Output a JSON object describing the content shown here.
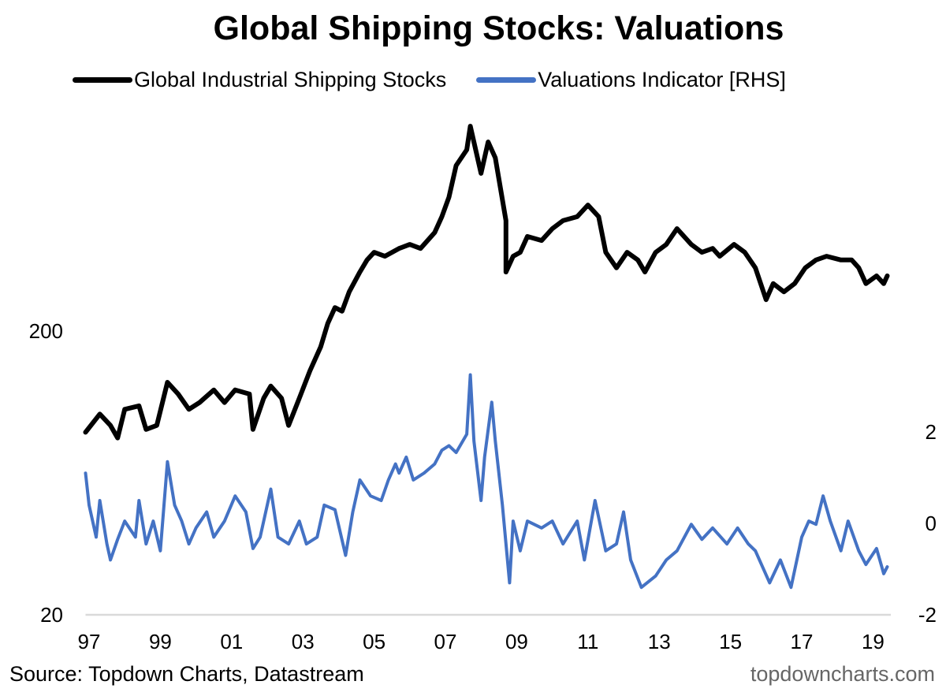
{
  "chart_data": {
    "type": "line",
    "title": "Global Shipping Stocks: Valuations",
    "source": "Source: Topdown Charts, Datastream",
    "watermark": "topdowncharts.com",
    "x_ticks": [
      "97",
      "99",
      "01",
      "03",
      "05",
      "07",
      "09",
      "11",
      "13",
      "15",
      "17",
      "19"
    ],
    "x_tick_years": [
      1997,
      1999,
      2001,
      2003,
      2005,
      2007,
      2009,
      2011,
      2013,
      2015,
      2017,
      2019
    ],
    "xlim": [
      1996.9,
      2019.5
    ],
    "left_axis": {
      "scale": "log",
      "ylim": [
        20,
        1100
      ],
      "ticks": [
        "20",
        "200"
      ],
      "tick_values": [
        20,
        200
      ]
    },
    "right_axis": {
      "scale": "linear",
      "ylim": [
        -2,
        4
      ],
      "ticks": [
        "-2",
        "0",
        "2"
      ],
      "tick_values": [
        -2,
        0,
        2
      ]
    },
    "grid": false,
    "legend": "top",
    "series": [
      {
        "name": "Global Industrial Shipping Stocks",
        "axis": "left",
        "color": "#000000",
        "x": [
          1996.9,
          1997.3,
          1997.6,
          1997.8,
          1998.0,
          1998.4,
          1998.6,
          1998.9,
          1999.2,
          1999.5,
          1999.8,
          2000.1,
          2000.5,
          2000.8,
          2001.1,
          2001.5,
          2001.6,
          2001.9,
          2002.1,
          2002.4,
          2002.6,
          2002.9,
          2003.2,
          2003.5,
          2003.7,
          2003.9,
          2004.1,
          2004.3,
          2004.6,
          2004.8,
          2005.0,
          2005.3,
          2005.7,
          2006.0,
          2006.3,
          2006.7,
          2006.9,
          2007.1,
          2007.3,
          2007.6,
          2007.7,
          2008.0,
          2008.2,
          2008.4,
          2008.7,
          2008.7,
          2008.9,
          2009.1,
          2009.3,
          2009.7,
          2010.0,
          2010.3,
          2010.7,
          2011.0,
          2011.3,
          2011.5,
          2011.8,
          2012.1,
          2012.4,
          2012.6,
          2012.9,
          2013.2,
          2013.5,
          2013.9,
          2014.2,
          2014.5,
          2014.7,
          2015.1,
          2015.4,
          2015.7,
          2016.0,
          2016.2,
          2016.5,
          2016.8,
          2017.1,
          2017.4,
          2017.7,
          2018.1,
          2018.4,
          2018.6,
          2018.8,
          2019.1,
          2019.3,
          2019.4
        ],
        "y": [
          88,
          102,
          93,
          84,
          106,
          109,
          90,
          93,
          132,
          120,
          106,
          112,
          124,
          112,
          124,
          120,
          90,
          116,
          128,
          116,
          93,
          116,
          145,
          176,
          213,
          242,
          235,
          275,
          323,
          356,
          379,
          367,
          391,
          404,
          391,
          445,
          506,
          593,
          766,
          871,
          1054,
          719,
          928,
          816,
          490,
          323,
          367,
          379,
          431,
          417,
          459,
          490,
          506,
          556,
          506,
          379,
          334,
          379,
          356,
          323,
          379,
          404,
          459,
          404,
          379,
          391,
          367,
          404,
          379,
          334,
          258,
          294,
          275,
          294,
          334,
          356,
          367,
          356,
          356,
          334,
          294,
          313,
          294,
          313
        ]
      },
      {
        "name": "Valuations Indicator [RHS]",
        "axis": "right",
        "color": "#4472C4",
        "x": [
          1996.9,
          1997.0,
          1997.2,
          1997.3,
          1997.5,
          1997.6,
          1997.8,
          1998.0,
          1998.3,
          1998.4,
          1998.6,
          1998.8,
          1999.0,
          1999.2,
          1999.4,
          1999.6,
          1999.8,
          2000.0,
          2000.3,
          2000.5,
          2000.8,
          2001.1,
          2001.4,
          2001.6,
          2001.8,
          2002.1,
          2002.3,
          2002.6,
          2002.9,
          2003.1,
          2003.4,
          2003.6,
          2003.9,
          2004.2,
          2004.4,
          2004.6,
          2004.9,
          2005.2,
          2005.4,
          2005.6,
          2005.7,
          2005.9,
          2006.1,
          2006.4,
          2006.7,
          2006.9,
          2007.1,
          2007.3,
          2007.6,
          2007.7,
          2007.8,
          2008.0,
          2008.1,
          2008.3,
          2008.4,
          2008.6,
          2008.8,
          2008.9,
          2009.1,
          2009.3,
          2009.7,
          2010.0,
          2010.3,
          2010.7,
          2010.9,
          2011.2,
          2011.5,
          2011.8,
          2012.0,
          2012.2,
          2012.5,
          2012.9,
          2013.2,
          2013.5,
          2013.9,
          2014.2,
          2014.5,
          2014.9,
          2015.2,
          2015.5,
          2015.7,
          2016.1,
          2016.4,
          2016.7,
          2017.0,
          2017.2,
          2017.4,
          2017.6,
          2017.8,
          2018.1,
          2018.3,
          2018.6,
          2018.8,
          2019.1,
          2019.3,
          2019.4
        ],
        "y": [
          1.1,
          0.4,
          -0.3,
          0.5,
          -0.45,
          -0.8,
          -0.35,
          0.05,
          -0.3,
          0.5,
          -0.45,
          0.05,
          -0.6,
          1.35,
          0.4,
          0.05,
          -0.45,
          -0.1,
          0.25,
          -0.3,
          0.05,
          0.6,
          0.25,
          -0.55,
          -0.3,
          0.75,
          -0.3,
          -0.45,
          0.05,
          -0.45,
          -0.3,
          0.4,
          0.3,
          -0.7,
          0.25,
          0.95,
          0.6,
          0.5,
          0.95,
          1.3,
          1.1,
          1.45,
          0.95,
          1.1,
          1.3,
          1.6,
          1.7,
          1.55,
          1.95,
          3.25,
          1.8,
          0.5,
          1.45,
          2.65,
          1.8,
          0.4,
          -1.3,
          0.05,
          -0.6,
          0.05,
          -0.1,
          0.05,
          -0.45,
          0.05,
          -0.8,
          0.5,
          -0.6,
          -0.45,
          0.25,
          -0.8,
          -1.4,
          -1.15,
          -0.8,
          -0.6,
          -0.02,
          -0.35,
          -0.1,
          -0.45,
          -0.1,
          -0.45,
          -0.6,
          -1.3,
          -0.8,
          -1.4,
          -0.3,
          0.05,
          -0.02,
          0.6,
          0.05,
          -0.6,
          0.05,
          -0.6,
          -0.9,
          -0.55,
          -1.1,
          -0.95
        ]
      }
    ]
  }
}
